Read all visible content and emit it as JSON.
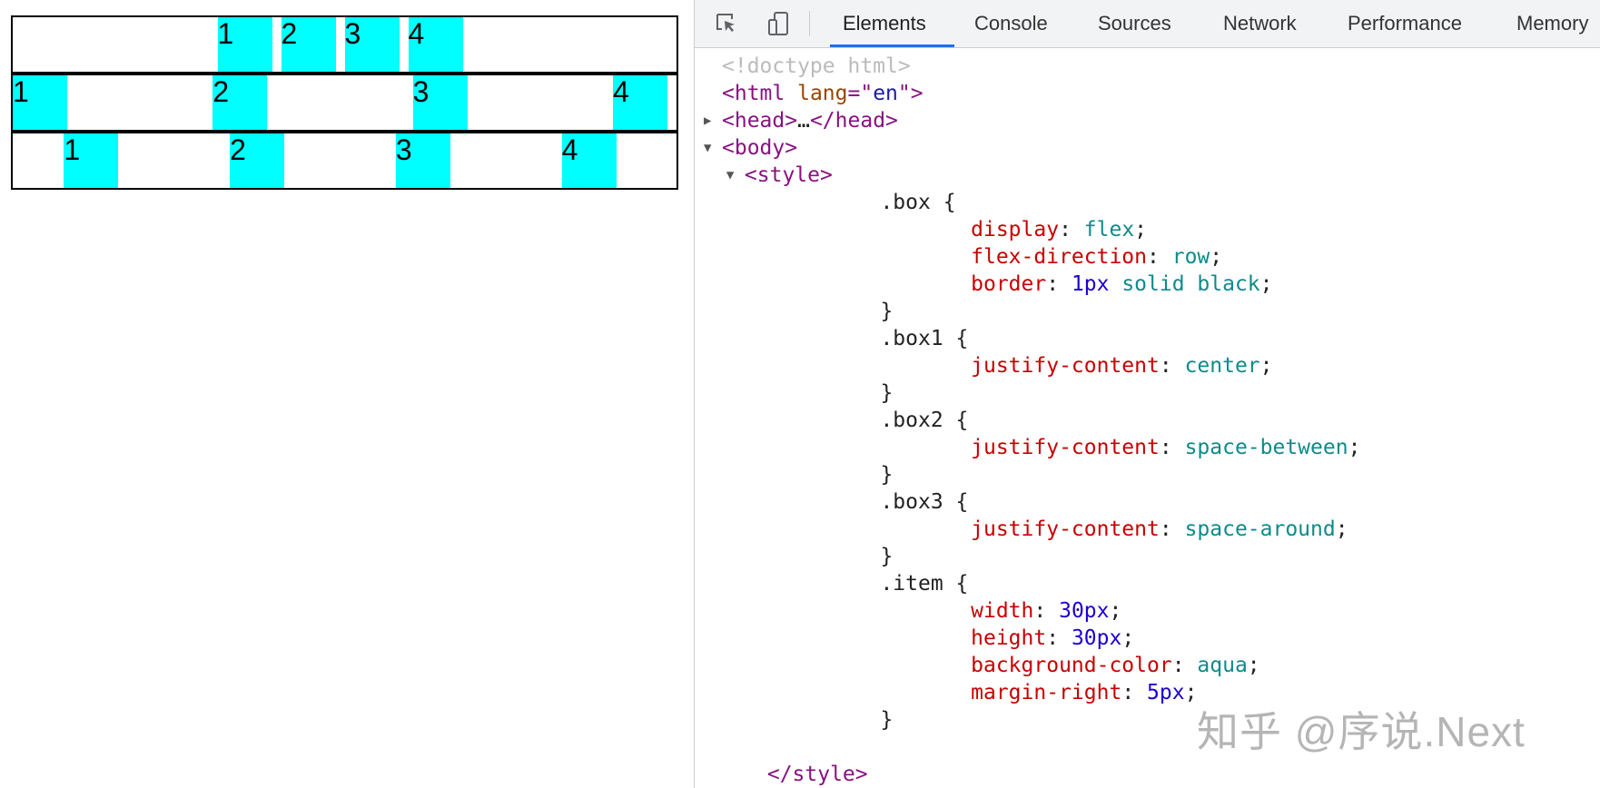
{
  "preview": {
    "boxes": [
      {
        "name": "box1",
        "items": [
          "1",
          "2",
          "3",
          "4"
        ]
      },
      {
        "name": "box2",
        "items": [
          "1",
          "2",
          "3",
          "4"
        ]
      },
      {
        "name": "box3",
        "items": [
          "1",
          "2",
          "3",
          "4"
        ]
      }
    ],
    "item_color": "#00ffff"
  },
  "devtools": {
    "toolbar_icons": [
      "inspect-element-icon",
      "device-toolbar-icon"
    ],
    "tabs": [
      {
        "label": "Elements",
        "active": true
      },
      {
        "label": "Console"
      },
      {
        "label": "Sources"
      },
      {
        "label": "Network"
      },
      {
        "label": "Performance"
      },
      {
        "label": "Memory"
      }
    ],
    "accent": "#1a73e8",
    "lines": [
      {
        "indent": 0,
        "tri": "",
        "tokens": [
          {
            "t": "<!doctype html>",
            "c": "doc"
          }
        ]
      },
      {
        "indent": 0,
        "tri": "",
        "tokens": [
          {
            "t": "<html ",
            "c": "tag"
          },
          {
            "t": "lang",
            "c": "attr"
          },
          {
            "t": "=\"",
            "c": "tag"
          },
          {
            "t": "en",
            "c": "aval"
          },
          {
            "t": "\">",
            "c": "tag"
          }
        ]
      },
      {
        "indent": 0,
        "tri": "▶",
        "tokens": [
          {
            "t": "<head>",
            "c": "tag"
          },
          {
            "t": "…",
            "c": "plain"
          },
          {
            "t": "</head>",
            "c": "tag"
          }
        ]
      },
      {
        "indent": 0,
        "tri": "▼",
        "tokens": [
          {
            "t": "<body>",
            "c": "tag"
          }
        ]
      },
      {
        "indent": 1,
        "tri": "▼",
        "tokens": [
          {
            "t": "<style>",
            "c": "tag"
          }
        ]
      },
      {
        "indent": 7,
        "tri": "",
        "tokens": [
          {
            "t": ".box {",
            "c": "plain"
          }
        ]
      },
      {
        "indent": 11,
        "tri": "",
        "tokens": [
          {
            "t": "display",
            "c": "prop"
          },
          {
            "t": ": ",
            "c": "plain"
          },
          {
            "t": "flex",
            "c": "kw"
          },
          {
            "t": ";",
            "c": "plain"
          }
        ]
      },
      {
        "indent": 11,
        "tri": "",
        "tokens": [
          {
            "t": "flex-direction",
            "c": "prop"
          },
          {
            "t": ": ",
            "c": "plain"
          },
          {
            "t": "row",
            "c": "kw"
          },
          {
            "t": ";",
            "c": "plain"
          }
        ]
      },
      {
        "indent": 11,
        "tri": "",
        "tokens": [
          {
            "t": "border",
            "c": "prop"
          },
          {
            "t": ": ",
            "c": "plain"
          },
          {
            "t": "1px",
            "c": "num"
          },
          {
            "t": " solid black",
            "c": "kw"
          },
          {
            "t": ";",
            "c": "plain"
          }
        ]
      },
      {
        "indent": 7,
        "tri": "",
        "tokens": [
          {
            "t": "}",
            "c": "plain"
          }
        ]
      },
      {
        "indent": 7,
        "tri": "",
        "tokens": [
          {
            "t": ".box1 {",
            "c": "plain"
          }
        ]
      },
      {
        "indent": 11,
        "tri": "",
        "tokens": [
          {
            "t": "justify-content",
            "c": "prop"
          },
          {
            "t": ": ",
            "c": "plain"
          },
          {
            "t": "center",
            "c": "kw"
          },
          {
            "t": ";",
            "c": "plain"
          }
        ]
      },
      {
        "indent": 7,
        "tri": "",
        "tokens": [
          {
            "t": "}",
            "c": "plain"
          }
        ]
      },
      {
        "indent": 7,
        "tri": "",
        "tokens": [
          {
            "t": ".box2 {",
            "c": "plain"
          }
        ]
      },
      {
        "indent": 11,
        "tri": "",
        "tokens": [
          {
            "t": "justify-content",
            "c": "prop"
          },
          {
            "t": ": ",
            "c": "plain"
          },
          {
            "t": "space-between",
            "c": "kw"
          },
          {
            "t": ";",
            "c": "plain"
          }
        ]
      },
      {
        "indent": 7,
        "tri": "",
        "tokens": [
          {
            "t": "}",
            "c": "plain"
          }
        ]
      },
      {
        "indent": 7,
        "tri": "",
        "tokens": [
          {
            "t": ".box3 {",
            "c": "plain"
          }
        ]
      },
      {
        "indent": 11,
        "tri": "",
        "tokens": [
          {
            "t": "justify-content",
            "c": "prop"
          },
          {
            "t": ": ",
            "c": "plain"
          },
          {
            "t": "space-around",
            "c": "kw"
          },
          {
            "t": ";",
            "c": "plain"
          }
        ]
      },
      {
        "indent": 7,
        "tri": "",
        "tokens": [
          {
            "t": "}",
            "c": "plain"
          }
        ]
      },
      {
        "indent": 7,
        "tri": "",
        "tokens": [
          {
            "t": ".item {",
            "c": "plain"
          }
        ]
      },
      {
        "indent": 11,
        "tri": "",
        "tokens": [
          {
            "t": "width",
            "c": "prop"
          },
          {
            "t": ": ",
            "c": "plain"
          },
          {
            "t": "30px",
            "c": "num"
          },
          {
            "t": ";",
            "c": "plain"
          }
        ]
      },
      {
        "indent": 11,
        "tri": "",
        "tokens": [
          {
            "t": "height",
            "c": "prop"
          },
          {
            "t": ": ",
            "c": "plain"
          },
          {
            "t": "30px",
            "c": "num"
          },
          {
            "t": ";",
            "c": "plain"
          }
        ]
      },
      {
        "indent": 11,
        "tri": "",
        "tokens": [
          {
            "t": "background-color",
            "c": "prop"
          },
          {
            "t": ": ",
            "c": "plain"
          },
          {
            "t": "aqua",
            "c": "kw"
          },
          {
            "t": ";",
            "c": "plain"
          }
        ]
      },
      {
        "indent": 11,
        "tri": "",
        "tokens": [
          {
            "t": "margin-right",
            "c": "prop"
          },
          {
            "t": ": ",
            "c": "plain"
          },
          {
            "t": "5px",
            "c": "num"
          },
          {
            "t": ";",
            "c": "plain"
          }
        ]
      },
      {
        "indent": 7,
        "tri": "",
        "tokens": [
          {
            "t": "}",
            "c": "plain"
          }
        ]
      },
      {
        "indent": 0,
        "tri": "",
        "tokens": []
      },
      {
        "indent": 2,
        "tri": "",
        "tokens": [
          {
            "t": "</style>",
            "c": "tag"
          }
        ]
      }
    ]
  },
  "watermark": "知乎 @序说.Next"
}
